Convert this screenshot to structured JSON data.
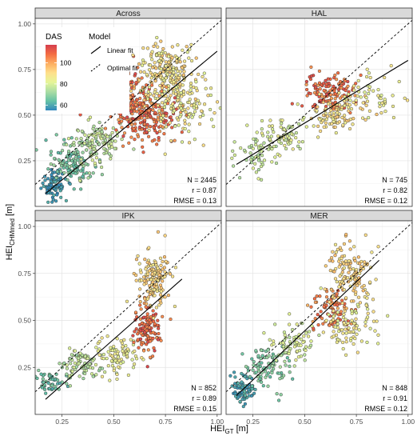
{
  "chart_data": {
    "type": "scatter",
    "facets": [
      "Across",
      "HAL",
      "IPK",
      "MER"
    ],
    "xlabel": "HEI",
    "xlabel_sub": "GT",
    "xlabel_unit": "[m]",
    "ylabel": "HEI",
    "ylabel_sub": "CHMmed",
    "ylabel_unit": "[m]",
    "xlim": [
      0.12,
      1.02
    ],
    "ylim": [
      0.0,
      1.03
    ],
    "x_ticks": [
      "0.25",
      "0.50",
      "0.75",
      "1.00"
    ],
    "y_ticks": [
      "0.25",
      "0.50",
      "0.75",
      "1.00"
    ],
    "x_tick_values": [
      0.25,
      0.5,
      0.75,
      1.0
    ],
    "y_tick_values": [
      0.25,
      0.5,
      0.75,
      1.0
    ],
    "grid": true,
    "color_scale": {
      "title": "DAS",
      "range": [
        55,
        117
      ],
      "ticks": [
        "60",
        "80",
        "100"
      ],
      "tick_values": [
        60,
        80,
        100
      ],
      "colors": [
        "#3288bd",
        "#66c2a5",
        "#abdda4",
        "#e6f598",
        "#fee08b",
        "#fdae61",
        "#f46d43",
        "#d53e4f"
      ]
    },
    "model_legend": {
      "title": "Model",
      "items": [
        {
          "label": "Linear fit",
          "style": "solid"
        },
        {
          "label": "Optimal fit",
          "style": "dashed"
        }
      ]
    },
    "panels": [
      {
        "name": "Across",
        "stats": {
          "n": "N = 2445",
          "r": "r = 0.87",
          "rmse": "RMSE = 0.13"
        },
        "linear_fit": {
          "x": [
            0.17,
            1.0
          ],
          "y": [
            0.07,
            0.85
          ]
        },
        "clusters": [
          {
            "cx": 0.21,
            "cy": 0.12,
            "sx": 0.03,
            "sy": 0.04,
            "n": 90,
            "das": [
              55,
              62
            ]
          },
          {
            "cx": 0.3,
            "cy": 0.24,
            "sx": 0.05,
            "sy": 0.06,
            "n": 120,
            "das": [
              62,
              72
            ]
          },
          {
            "cx": 0.4,
            "cy": 0.34,
            "sx": 0.06,
            "sy": 0.07,
            "n": 120,
            "das": [
              72,
              82
            ]
          },
          {
            "cx": 0.58,
            "cy": 0.57,
            "sx": 0.06,
            "sy": 0.08,
            "n": 150,
            "das": [
              98,
              115
            ]
          },
          {
            "cx": 0.75,
            "cy": 0.72,
            "sx": 0.07,
            "sy": 0.09,
            "n": 240,
            "das": [
              82,
              95
            ]
          },
          {
            "cx": 0.68,
            "cy": 0.48,
            "sx": 0.07,
            "sy": 0.07,
            "n": 140,
            "das": [
              100,
              115
            ]
          },
          {
            "cx": 0.85,
            "cy": 0.55,
            "sx": 0.08,
            "sy": 0.09,
            "n": 110,
            "das": [
              80,
              92
            ]
          }
        ]
      },
      {
        "name": "HAL",
        "stats": {
          "n": "N = 745",
          "r": "r = 0.82",
          "rmse": "RMSE = 0.12"
        },
        "linear_fit": {
          "x": [
            0.17,
            1.0
          ],
          "y": [
            0.23,
            0.8
          ]
        },
        "clusters": [
          {
            "cx": 0.28,
            "cy": 0.3,
            "sx": 0.05,
            "sy": 0.06,
            "n": 60,
            "das": [
              72,
              82
            ]
          },
          {
            "cx": 0.4,
            "cy": 0.39,
            "sx": 0.05,
            "sy": 0.05,
            "n": 70,
            "das": [
              76,
              86
            ]
          },
          {
            "cx": 0.62,
            "cy": 0.62,
            "sx": 0.06,
            "sy": 0.05,
            "n": 130,
            "das": [
              100,
              115
            ]
          },
          {
            "cx": 0.66,
            "cy": 0.5,
            "sx": 0.06,
            "sy": 0.06,
            "n": 100,
            "das": [
              84,
              95
            ]
          },
          {
            "cx": 0.84,
            "cy": 0.6,
            "sx": 0.08,
            "sy": 0.06,
            "n": 50,
            "das": [
              80,
              90
            ]
          }
        ]
      },
      {
        "name": "IPK",
        "stats": {
          "n": "N = 852",
          "r": "r = 0.89",
          "rmse": "RMSE = 0.15"
        },
        "linear_fit": {
          "x": [
            0.17,
            0.83
          ],
          "y": [
            0.08,
            0.72
          ]
        },
        "clusters": [
          {
            "cx": 0.2,
            "cy": 0.17,
            "sx": 0.03,
            "sy": 0.03,
            "n": 50,
            "das": [
              60,
              70
            ]
          },
          {
            "cx": 0.35,
            "cy": 0.26,
            "sx": 0.06,
            "sy": 0.05,
            "n": 90,
            "das": [
              70,
              82
            ]
          },
          {
            "cx": 0.52,
            "cy": 0.32,
            "sx": 0.05,
            "sy": 0.05,
            "n": 80,
            "das": [
              80,
              88
            ]
          },
          {
            "cx": 0.66,
            "cy": 0.45,
            "sx": 0.03,
            "sy": 0.07,
            "n": 120,
            "das": [
              102,
              116
            ]
          },
          {
            "cx": 0.7,
            "cy": 0.72,
            "sx": 0.04,
            "sy": 0.07,
            "n": 160,
            "das": [
              86,
              97
            ]
          }
        ]
      },
      {
        "name": "MER",
        "stats": {
          "n": "N = 848",
          "r": "r = 0.91",
          "rmse": "RMSE = 0.12"
        },
        "linear_fit": {
          "x": [
            0.17,
            0.86
          ],
          "y": [
            0.1,
            0.82
          ]
        },
        "clusters": [
          {
            "cx": 0.2,
            "cy": 0.13,
            "sx": 0.03,
            "sy": 0.04,
            "n": 80,
            "das": [
              56,
              63
            ]
          },
          {
            "cx": 0.32,
            "cy": 0.26,
            "sx": 0.05,
            "sy": 0.06,
            "n": 90,
            "das": [
              63,
              72
            ]
          },
          {
            "cx": 0.45,
            "cy": 0.38,
            "sx": 0.05,
            "sy": 0.06,
            "n": 80,
            "das": [
              74,
              84
            ]
          },
          {
            "cx": 0.63,
            "cy": 0.56,
            "sx": 0.05,
            "sy": 0.06,
            "n": 90,
            "das": [
              98,
              112
            ]
          },
          {
            "cx": 0.72,
            "cy": 0.74,
            "sx": 0.06,
            "sy": 0.08,
            "n": 140,
            "das": [
              86,
              97
            ]
          },
          {
            "cx": 0.72,
            "cy": 0.48,
            "sx": 0.06,
            "sy": 0.06,
            "n": 90,
            "das": [
              80,
              90
            ]
          }
        ]
      }
    ]
  }
}
